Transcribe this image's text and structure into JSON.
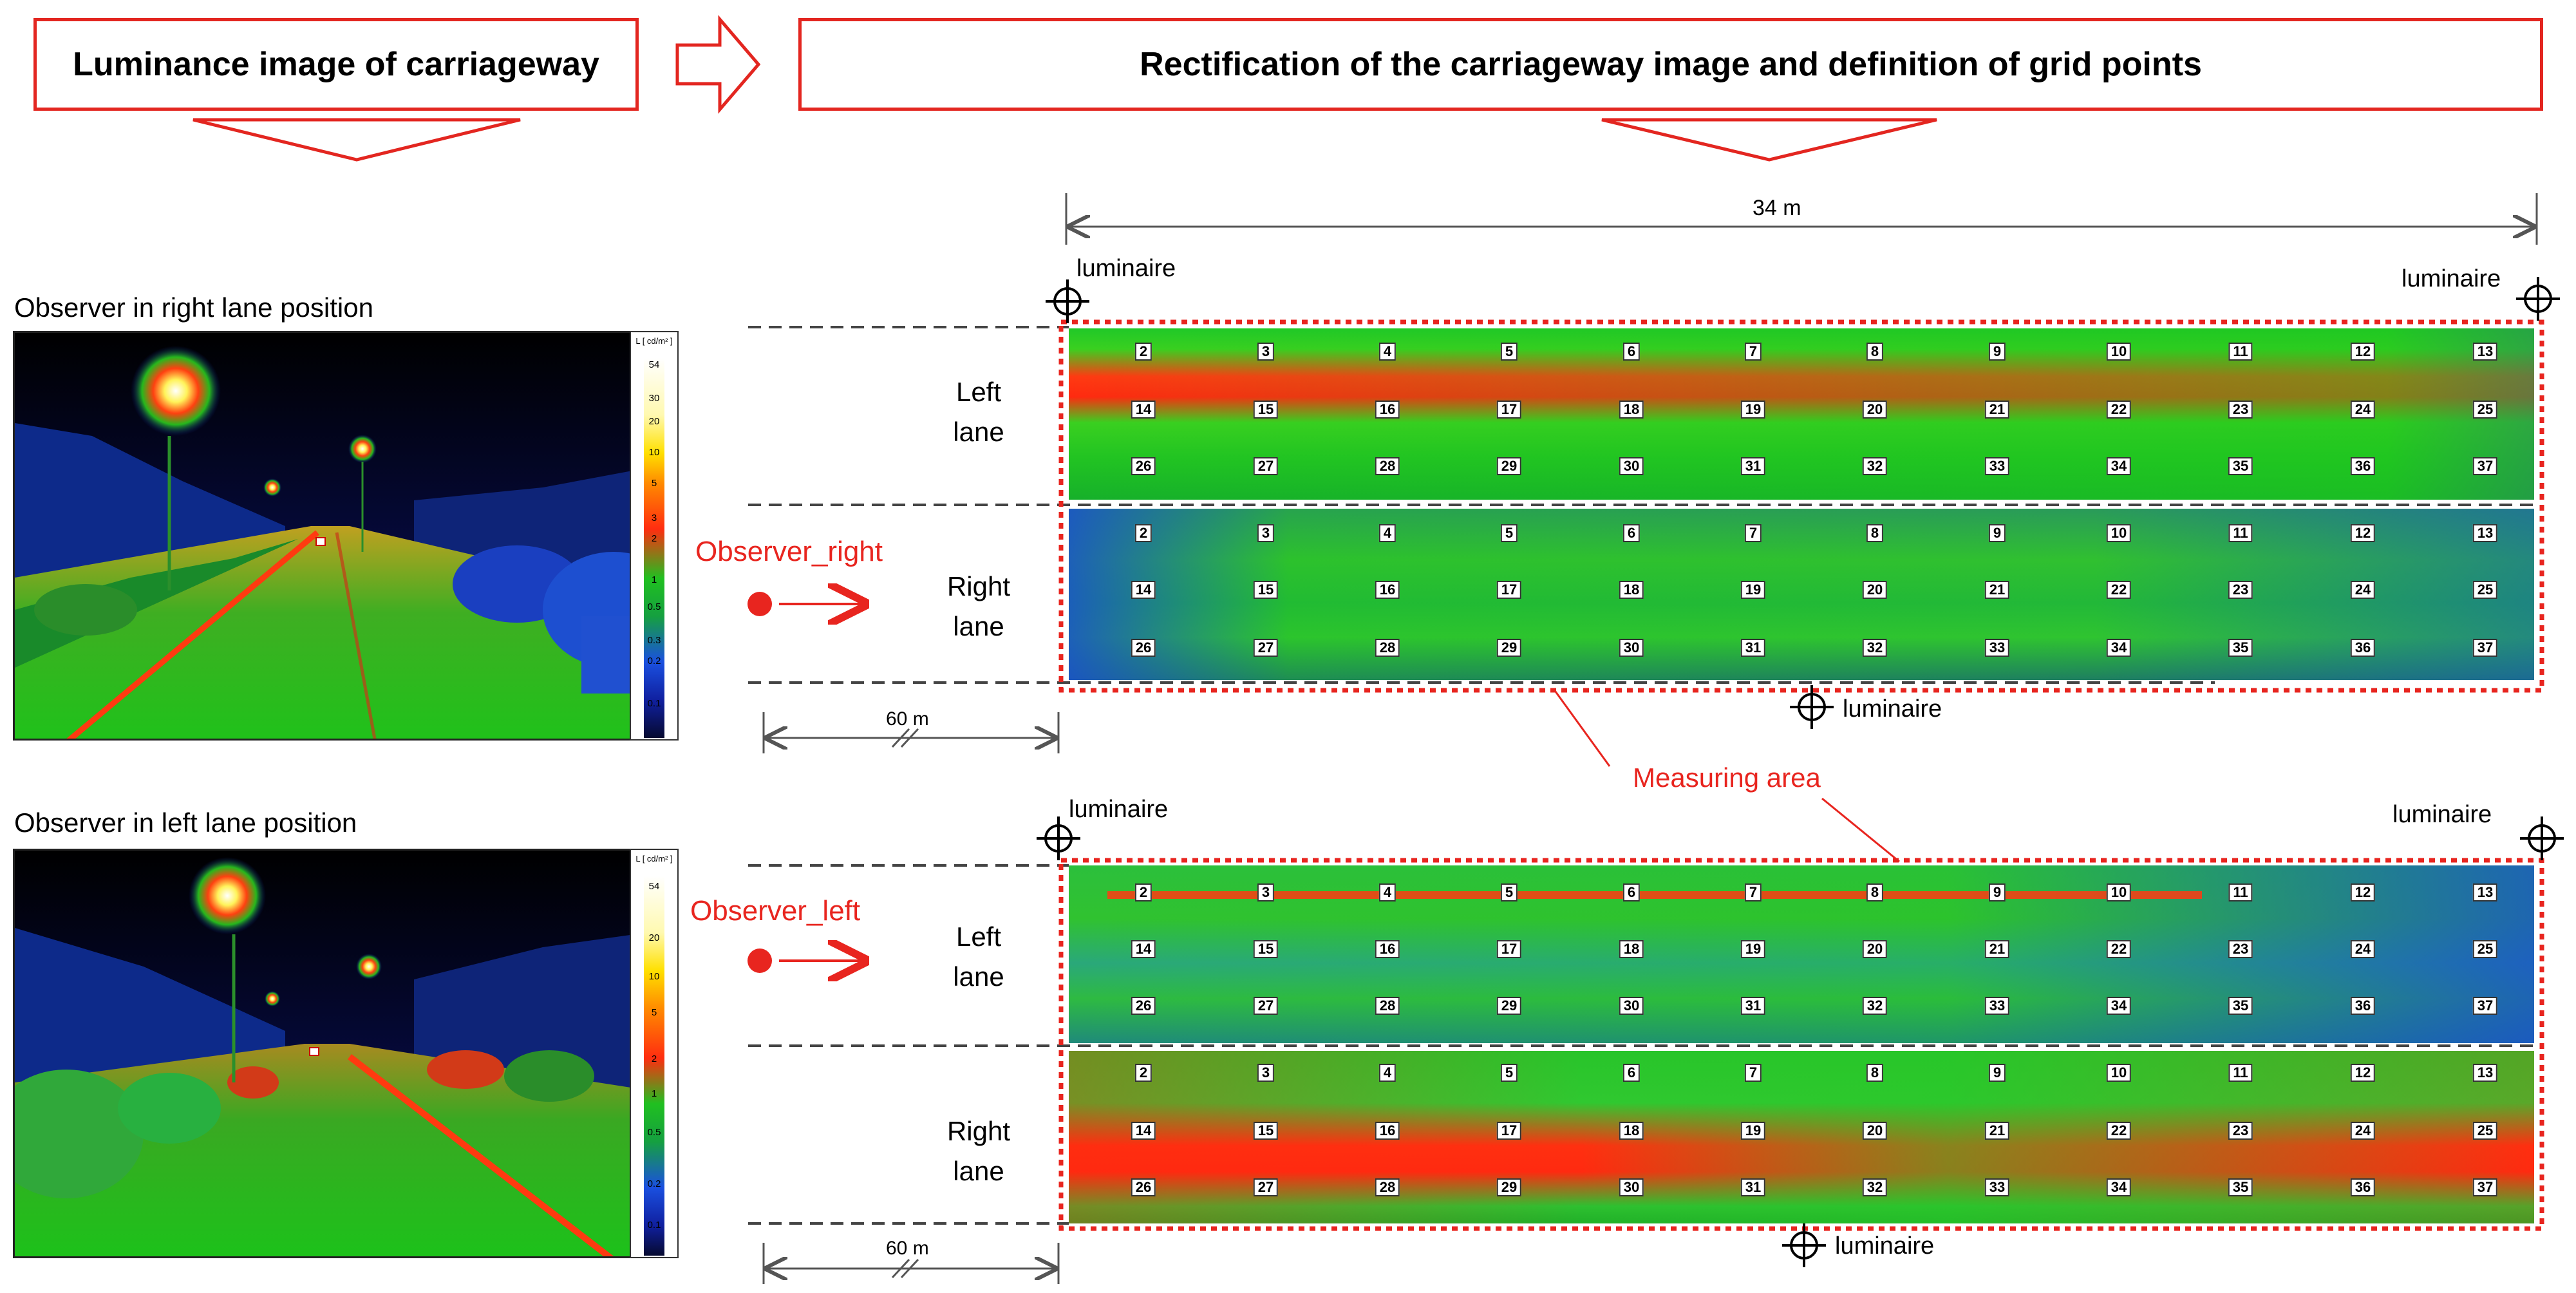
{
  "header": {
    "left_title": "Luminance image of carriageway",
    "right_title": "Rectification of the carriageway image and definition of grid points"
  },
  "observers": [
    {
      "caption": "Observer in right lane position",
      "tag": "Observer_right",
      "legend_unit": "L [ cd/m² ]",
      "legend_ticks": [
        "54",
        "30",
        "20",
        "10",
        "5",
        "3",
        "2",
        "1",
        "0.5",
        "0.3",
        "0.2",
        "0.1"
      ],
      "upper_label": "Left\nlane",
      "lower_label": "Right\nlane",
      "distance": "60 m"
    },
    {
      "caption": "Observer in left lane position",
      "tag": "Observer_left",
      "legend_unit": "L [ cd/m² ]",
      "legend_ticks": [
        "54",
        "20",
        "10",
        "5",
        "2",
        "1",
        "0.5",
        "0.2",
        "0.1"
      ],
      "upper_label": "Left\nlane",
      "lower_label": "Right\nlane",
      "distance": "60 m"
    }
  ],
  "span": "34 m",
  "luminaire_label": "luminaire",
  "measuring_area_label": "Measuring area",
  "grid_rows": [
    [
      "2",
      "3",
      "4",
      "5",
      "6",
      "7",
      "8",
      "9",
      "10",
      "11",
      "12",
      "13"
    ],
    [
      "14",
      "15",
      "16",
      "17",
      "18",
      "19",
      "20",
      "21",
      "22",
      "23",
      "24",
      "25"
    ],
    [
      "26",
      "27",
      "28",
      "29",
      "30",
      "31",
      "32",
      "33",
      "34",
      "35",
      "36",
      "37"
    ]
  ],
  "colors": {
    "accent_red": "#e8251f",
    "box_red": "#e32620",
    "heat_green": "#1fd41a",
    "heat_red": "#ff2a10",
    "heat_blue": "#1a4fd0"
  }
}
